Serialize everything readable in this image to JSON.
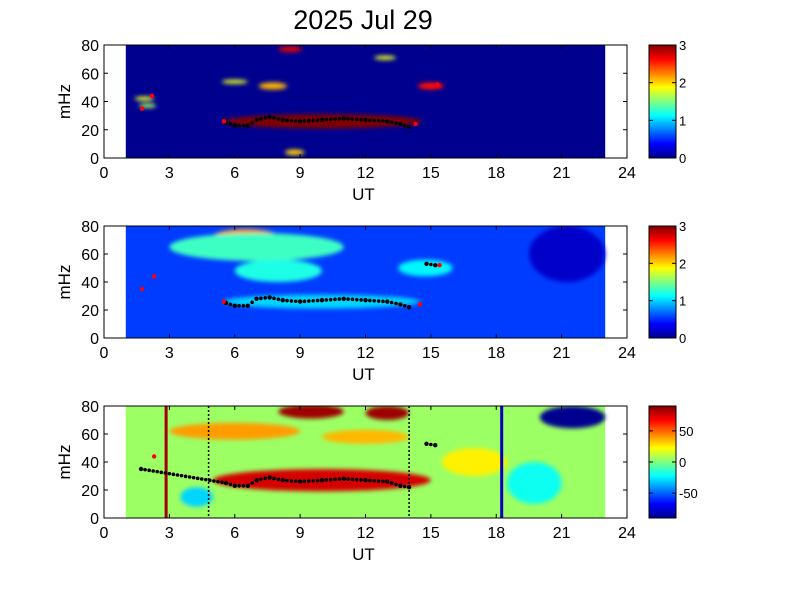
{
  "title": "2025 Jul 29",
  "colormap": [
    "#00008f",
    "#0000ff",
    "#0080ff",
    "#00ffff",
    "#80ff80",
    "#ffff00",
    "#ff8000",
    "#ff0000",
    "#800000"
  ],
  "chart_data": [
    {
      "type": "heatmap",
      "panel": "top",
      "xlabel": "UT",
      "ylabel": "mHz",
      "xlim": [
        0,
        24
      ],
      "ylim": [
        0,
        80
      ],
      "xticks": [
        0,
        3,
        6,
        9,
        12,
        15,
        18,
        21,
        24
      ],
      "yticks": [
        0,
        20,
        40,
        60,
        80
      ],
      "data_extent_x": [
        1,
        23
      ],
      "background_value": 0,
      "colorbar": {
        "range": [
          0,
          3
        ],
        "ticks": [
          0,
          1,
          2,
          3
        ]
      },
      "blobs": [
        {
          "x_range": [
            5.5,
            14.6
          ],
          "y_center": 26,
          "height": 10,
          "value": 3
        },
        {
          "x_range": [
            8.3,
            9.2
          ],
          "y_center": 4,
          "height": 4,
          "value": 2
        },
        {
          "x_range": [
            7.1,
            8.4
          ],
          "y_center": 51,
          "height": 5,
          "value": 2.1
        },
        {
          "x_range": [
            5.4,
            6.6
          ],
          "y_center": 54,
          "height": 3,
          "value": 1.8
        },
        {
          "x_range": [
            14.4,
            15.6
          ],
          "y_center": 51,
          "height": 5,
          "value": 2.6
        },
        {
          "x_range": [
            12.4,
            13.4
          ],
          "y_center": 71,
          "height": 3,
          "value": 1.8
        },
        {
          "x_range": [
            8.0,
            9.1
          ],
          "y_center": 77,
          "height": 4,
          "value": 2.7
        },
        {
          "x_range": [
            1.4,
            2.3
          ],
          "y_center": 42,
          "height": 3,
          "value": 1.8
        },
        {
          "x_range": [
            1.6,
            2.4
          ],
          "y_center": 37,
          "height": 3,
          "value": 1.6
        }
      ],
      "peak_markers": [
        {
          "x": 1.75,
          "y": 35,
          "color": "red"
        },
        {
          "x": 2.2,
          "y": 44,
          "color": "red"
        },
        {
          "x": 5.5,
          "y": 26,
          "color": "red"
        },
        {
          "x": 14.3,
          "y": 24,
          "color": "red"
        },
        {
          "x": 15.3,
          "y": 52,
          "color": "red"
        }
      ],
      "ridge": [
        [
          5.6,
          25
        ],
        [
          6.0,
          23
        ],
        [
          6.6,
          23
        ],
        [
          7.0,
          27
        ],
        [
          7.6,
          29
        ],
        [
          8.2,
          27
        ],
        [
          9.0,
          26
        ],
        [
          10.0,
          27
        ],
        [
          11.0,
          28
        ],
        [
          12.0,
          27
        ],
        [
          13.0,
          26
        ],
        [
          13.6,
          24
        ],
        [
          14.0,
          22
        ]
      ]
    },
    {
      "type": "heatmap",
      "panel": "middle",
      "xlabel": "UT",
      "ylabel": "mHz",
      "xlim": [
        0,
        24
      ],
      "ylim": [
        0,
        80
      ],
      "xticks": [
        0,
        3,
        6,
        9,
        12,
        15,
        18,
        21,
        24
      ],
      "yticks": [
        0,
        20,
        40,
        60,
        80
      ],
      "data_extent_x": [
        1,
        23
      ],
      "background_value": 0.55,
      "colorbar": {
        "range": [
          0,
          3
        ],
        "ticks": [
          0,
          1,
          2,
          3
        ]
      },
      "blobs": [
        {
          "x_range": [
            5.0,
            8.0
          ],
          "y_center": 72,
          "height": 12,
          "value": 2.2
        },
        {
          "x_range": [
            3.0,
            11.0
          ],
          "y_center": 65,
          "height": 20,
          "value": 1.3
        },
        {
          "x_range": [
            6.0,
            10.0
          ],
          "y_center": 48,
          "height": 16,
          "value": 1.2
        },
        {
          "x_range": [
            13.5,
            16.0
          ],
          "y_center": 50,
          "height": 12,
          "value": 1.1
        },
        {
          "x_range": [
            5.5,
            14.5
          ],
          "y_center": 26,
          "height": 10,
          "value": 1.0
        },
        {
          "x_range": [
            19.5,
            23.0
          ],
          "y_center": 60,
          "height": 40,
          "value": 0.2
        }
      ],
      "peak_markers": [
        {
          "x": 1.75,
          "y": 35,
          "color": "red"
        },
        {
          "x": 2.3,
          "y": 44,
          "color": "red"
        },
        {
          "x": 5.5,
          "y": 26,
          "color": "red"
        },
        {
          "x": 14.5,
          "y": 24,
          "color": "red"
        },
        {
          "x": 15.4,
          "y": 52,
          "color": "red"
        }
      ],
      "ridge": [
        [
          5.6,
          25
        ],
        [
          6.0,
          23
        ],
        [
          6.6,
          23
        ],
        [
          7.0,
          28
        ],
        [
          7.6,
          29
        ],
        [
          8.2,
          27
        ],
        [
          9.0,
          26
        ],
        [
          10.0,
          27
        ],
        [
          11.0,
          28
        ],
        [
          12.0,
          27
        ],
        [
          13.0,
          26
        ],
        [
          13.6,
          24
        ],
        [
          14.0,
          22
        ],
        [
          14.8,
          53
        ],
        [
          15.2,
          52
        ]
      ]
    },
    {
      "type": "heatmap",
      "panel": "bottom",
      "xlabel": "UT",
      "ylabel": "mHz",
      "xlim": [
        0,
        24
      ],
      "ylim": [
        0,
        80
      ],
      "xticks": [
        0,
        3,
        6,
        9,
        12,
        15,
        18,
        21,
        24
      ],
      "yticks": [
        0,
        20,
        40,
        60,
        80
      ],
      "data_extent_x": [
        1,
        23
      ],
      "background_value": 5,
      "colorbar": {
        "range": [
          -90,
          90
        ],
        "ticks": [
          -50,
          0,
          50
        ]
      },
      "blobs": [
        {
          "x_range": [
            5.0,
            15.0
          ],
          "y_center": 27,
          "height": 16,
          "value": 75
        },
        {
          "x_range": [
            8.0,
            11.0
          ],
          "y_center": 76,
          "height": 10,
          "value": 85
        },
        {
          "x_range": [
            12.0,
            14.0
          ],
          "y_center": 75,
          "height": 10,
          "value": 85
        },
        {
          "x_range": [
            3.0,
            9.0
          ],
          "y_center": 62,
          "height": 12,
          "value": 40
        },
        {
          "x_range": [
            10.0,
            14.0
          ],
          "y_center": 58,
          "height": 10,
          "value": 35
        },
        {
          "x_range": [
            15.5,
            18.5
          ],
          "y_center": 40,
          "height": 20,
          "value": 25
        },
        {
          "x_range": [
            3.5,
            5.0
          ],
          "y_center": 15,
          "height": 14,
          "value": -30
        },
        {
          "x_range": [
            18.5,
            21.0
          ],
          "y_center": 25,
          "height": 30,
          "value": -20
        },
        {
          "x_range": [
            20.0,
            23.0
          ],
          "y_center": 72,
          "height": 16,
          "value": -90
        }
      ],
      "vertical_lines": [
        {
          "x": 2.85,
          "style": "solid",
          "color": "#a00000"
        },
        {
          "x": 4.8,
          "style": "dotted",
          "color": "#000000"
        },
        {
          "x": 14.0,
          "style": "dotted",
          "color": "#000000"
        },
        {
          "x": 18.25,
          "style": "solid",
          "color": "#0000c0"
        }
      ],
      "peak_markers": [
        {
          "x": 2.3,
          "y": 44,
          "color": "red"
        }
      ],
      "ridge": [
        [
          1.7,
          35
        ],
        [
          5.6,
          25
        ],
        [
          6.0,
          23
        ],
        [
          6.6,
          23
        ],
        [
          7.0,
          27
        ],
        [
          7.6,
          29
        ],
        [
          8.2,
          27
        ],
        [
          9.0,
          26
        ],
        [
          10.0,
          27
        ],
        [
          11.0,
          28
        ],
        [
          12.0,
          27
        ],
        [
          13.0,
          26
        ],
        [
          13.6,
          23
        ],
        [
          14.0,
          22
        ],
        [
          14.8,
          53
        ],
        [
          15.2,
          52
        ]
      ]
    }
  ]
}
